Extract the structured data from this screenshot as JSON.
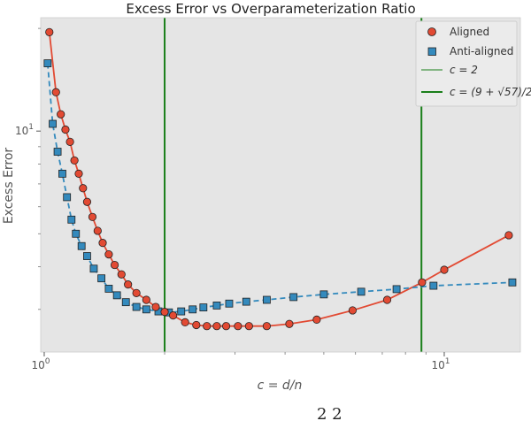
{
  "chart_data": {
    "type": "line",
    "title": "Excess Error vs Overparameterization Ratio",
    "xlabel": "c = d/n",
    "ylabel": "Excess Error",
    "xscale": "log",
    "yscale": "log",
    "xlim": [
      0.98,
      15.5
    ],
    "ylim": [
      2.25,
      21.5
    ],
    "grid": false,
    "background": "#e5e5e5",
    "legend_position": "top-right",
    "x_ticks": [
      {
        "value": 1,
        "label": "10^0"
      },
      {
        "value": 10,
        "label": "10^1"
      }
    ],
    "y_ticks": [
      {
        "value": 10,
        "label": "10^1"
      }
    ],
    "vlines": [
      {
        "x": 2,
        "label": "c = 2",
        "color": "#1a7f1a"
      },
      {
        "x": 8.77,
        "label": "c = (9 + √57)/2",
        "color": "#1a7f1a"
      }
    ],
    "series": [
      {
        "name": "Aligned",
        "marker": "circle",
        "color": "#e24a33",
        "linestyle": "solid",
        "x": [
          1.03,
          1.07,
          1.1,
          1.13,
          1.16,
          1.19,
          1.22,
          1.25,
          1.28,
          1.32,
          1.36,
          1.4,
          1.45,
          1.5,
          1.56,
          1.62,
          1.7,
          1.8,
          1.9,
          2.0,
          2.1,
          2.25,
          2.4,
          2.55,
          2.7,
          2.85,
          3.05,
          3.25,
          3.6,
          4.1,
          4.8,
          5.9,
          7.2,
          8.8,
          10.0,
          14.5
        ],
        "y": [
          19.5,
          13.0,
          11.2,
          10.1,
          9.3,
          8.2,
          7.5,
          6.8,
          6.2,
          5.6,
          5.1,
          4.7,
          4.35,
          4.05,
          3.8,
          3.55,
          3.35,
          3.2,
          3.05,
          2.95,
          2.88,
          2.75,
          2.7,
          2.68,
          2.68,
          2.68,
          2.68,
          2.68,
          2.68,
          2.72,
          2.8,
          2.98,
          3.2,
          3.6,
          3.92,
          4.95
        ]
      },
      {
        "name": "Anti-aligned",
        "marker": "square",
        "color": "#348abd",
        "linestyle": "dashed",
        "x": [
          1.02,
          1.05,
          1.08,
          1.11,
          1.14,
          1.17,
          1.2,
          1.24,
          1.28,
          1.33,
          1.39,
          1.45,
          1.52,
          1.6,
          1.7,
          1.8,
          1.93,
          2.05,
          2.2,
          2.35,
          2.5,
          2.7,
          2.9,
          3.2,
          3.6,
          4.2,
          5.0,
          6.2,
          7.6,
          9.4,
          14.8
        ],
        "y": [
          15.8,
          10.5,
          8.7,
          7.5,
          6.4,
          5.5,
          5.0,
          4.6,
          4.3,
          3.95,
          3.7,
          3.45,
          3.3,
          3.15,
          3.05,
          3.0,
          2.96,
          2.94,
          2.96,
          3.0,
          3.04,
          3.08,
          3.12,
          3.16,
          3.2,
          3.26,
          3.32,
          3.38,
          3.44,
          3.52,
          3.6
        ]
      }
    ]
  },
  "caption_fragment": "2          2"
}
